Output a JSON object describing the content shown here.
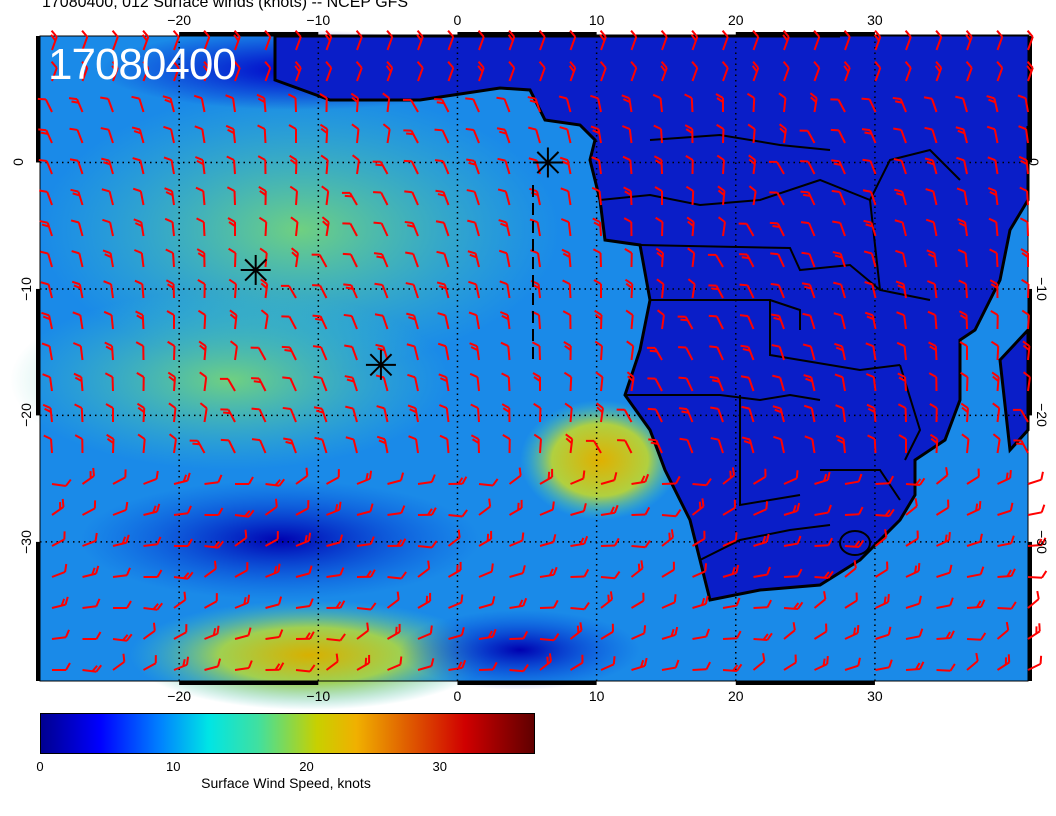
{
  "title": "17080400, 012 Surface winds (knots) -- NCEP GFS",
  "stamp": "17080400",
  "axes": {
    "top_ticks": [
      "−20",
      "−10",
      "0",
      "10",
      "20",
      "30"
    ],
    "bottom_ticks": [
      "−20",
      "−10",
      "0",
      "10",
      "20",
      "30"
    ],
    "left_ticks": [
      "0",
      "−10",
      "−20",
      "−30"
    ],
    "right_ticks": [
      "0",
      "−10",
      "−20",
      "−30"
    ]
  },
  "map_extent": {
    "lon": [
      -30,
      41
    ],
    "lat": [
      -41,
      10
    ]
  },
  "storms": [
    {
      "lon": 6.5,
      "lat": 0
    },
    {
      "lon": -14.5,
      "lat": -8.5
    },
    {
      "lon": -5.5,
      "lat": -16
    }
  ],
  "colorbar": {
    "label": "Surface Wind Speed, knots",
    "ticks": [
      "0",
      "10",
      "20",
      "30"
    ],
    "range": [
      0,
      37
    ],
    "colors": [
      "#00008f",
      "#0000ff",
      "#0080ff",
      "#00e5e5",
      "#40e0a0",
      "#c8d000",
      "#f0b000",
      "#e06000",
      "#d00000",
      "#600000"
    ]
  },
  "barb_color": "#ff0000"
}
